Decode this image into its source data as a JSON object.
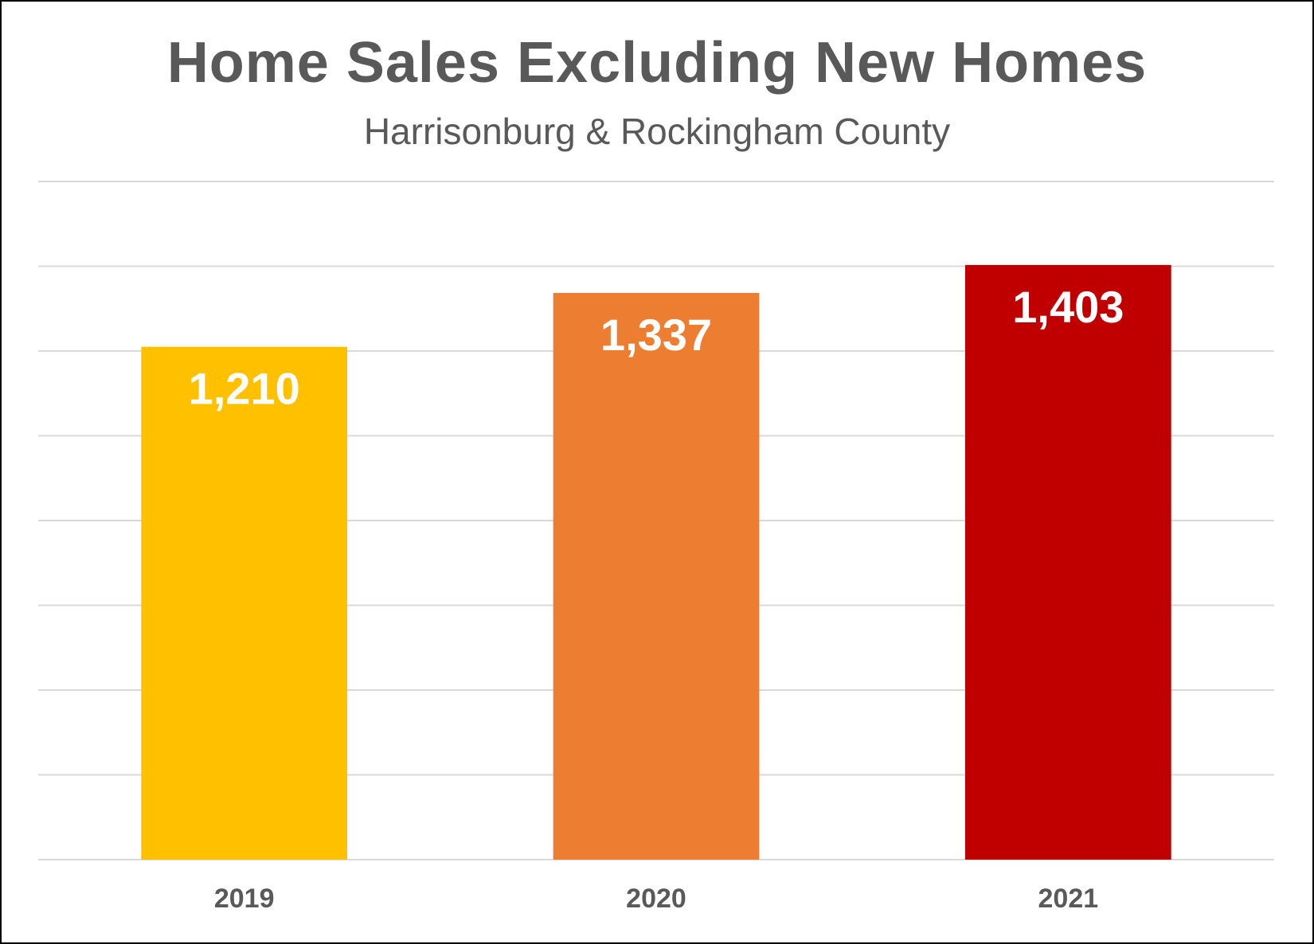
{
  "chart_data": {
    "type": "bar",
    "title": "Home Sales Excluding New Homes",
    "subtitle": "Harrisonburg & Rockingham County",
    "categories": [
      "2019",
      "2020",
      "2021"
    ],
    "values": [
      1210,
      1337,
      1403
    ],
    "value_labels": [
      "1,210",
      "1,337",
      "1,403"
    ],
    "colors": [
      "#FFC000",
      "#ED7D31",
      "#C00000"
    ],
    "ylim": [
      0,
      1600
    ],
    "gridline_step": 200,
    "grid": true,
    "legend": "none",
    "xlabel": "",
    "ylabel": ""
  }
}
